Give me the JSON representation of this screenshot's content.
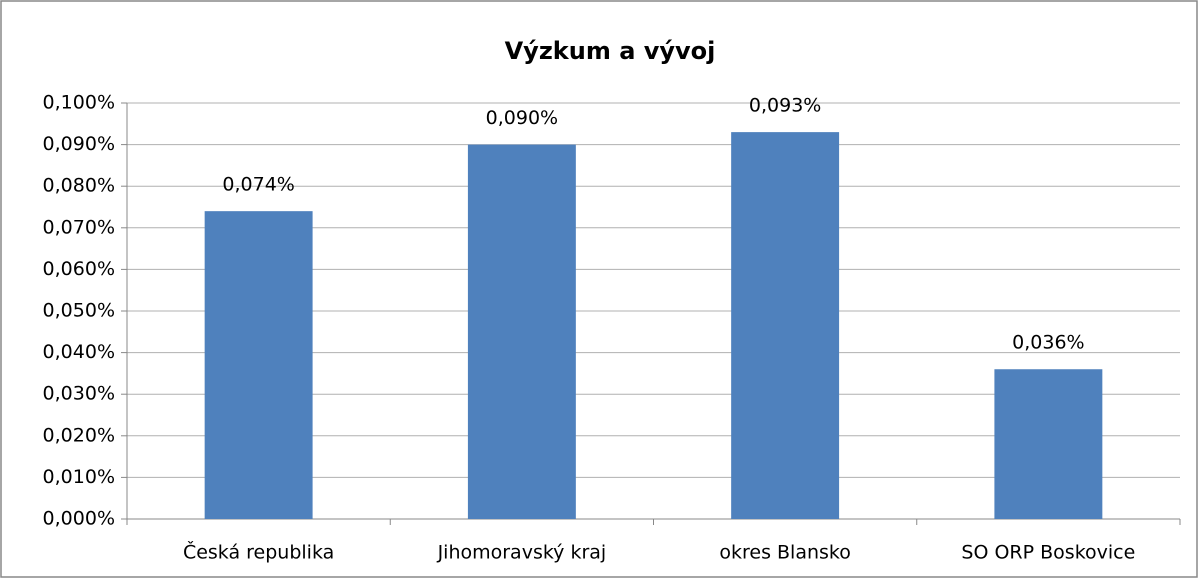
{
  "chart_data": {
    "type": "bar",
    "title": "Výzkum a vývoj",
    "categories": [
      "Česká republika",
      "Jihomoravský kraj",
      "okres Blansko",
      "SO ORP Boskovice"
    ],
    "values": [
      0.074,
      0.09,
      0.093,
      0.036
    ],
    "value_labels": [
      "0,074%",
      "0,090%",
      "0,093%",
      "0,036%"
    ],
    "color": "#4f81bd",
    "ylim": [
      0,
      0.1
    ],
    "yticks": [
      {
        "value": 0,
        "label": "0,000%"
      },
      {
        "value": 0.01,
        "label": "0,010%"
      },
      {
        "value": 0.02,
        "label": "0,020%"
      },
      {
        "value": 0.03,
        "label": "0,030%"
      },
      {
        "value": 0.04,
        "label": "0,040%"
      },
      {
        "value": 0.05,
        "label": "0,050%"
      },
      {
        "value": 0.06,
        "label": "0,060%"
      },
      {
        "value": 0.07,
        "label": "0,070%"
      },
      {
        "value": 0.08,
        "label": "0,080%"
      },
      {
        "value": 0.09,
        "label": "0,090%"
      },
      {
        "value": 0.1,
        "label": "0,100%"
      }
    ],
    "grid": true
  }
}
